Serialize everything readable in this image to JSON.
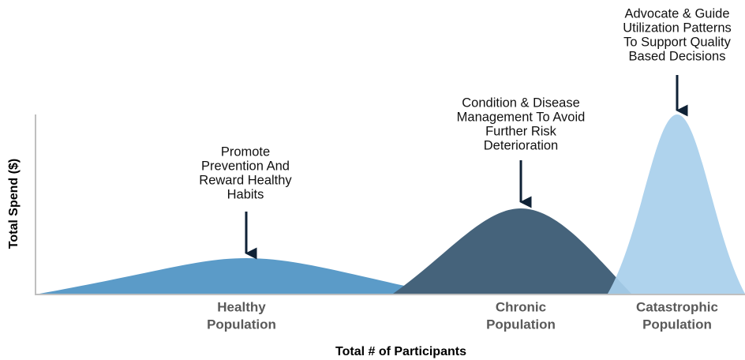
{
  "y_axis_label": "Total Spend ($)",
  "x_axis_label": "Total # of Participants",
  "groups": [
    {
      "label": [
        "Healthy",
        "Population"
      ],
      "annotation": [
        "Promote",
        "Prevention And",
        "Reward Healthy",
        "Habits"
      ],
      "color": "#5b9bc8"
    },
    {
      "label": [
        "Chronic",
        "Population"
      ],
      "annotation": [
        "Condition & Disease",
        "Management To Avoid",
        "Further Risk",
        "Deterioration"
      ],
      "color": "#45637b"
    },
    {
      "label": [
        "Catastrophic",
        "Population"
      ],
      "annotation": [
        "Advocate & Guide",
        "Utilization Patterns",
        "To Support Quality",
        "Based Decisions"
      ],
      "color": "#a8cfeb"
    }
  ]
}
